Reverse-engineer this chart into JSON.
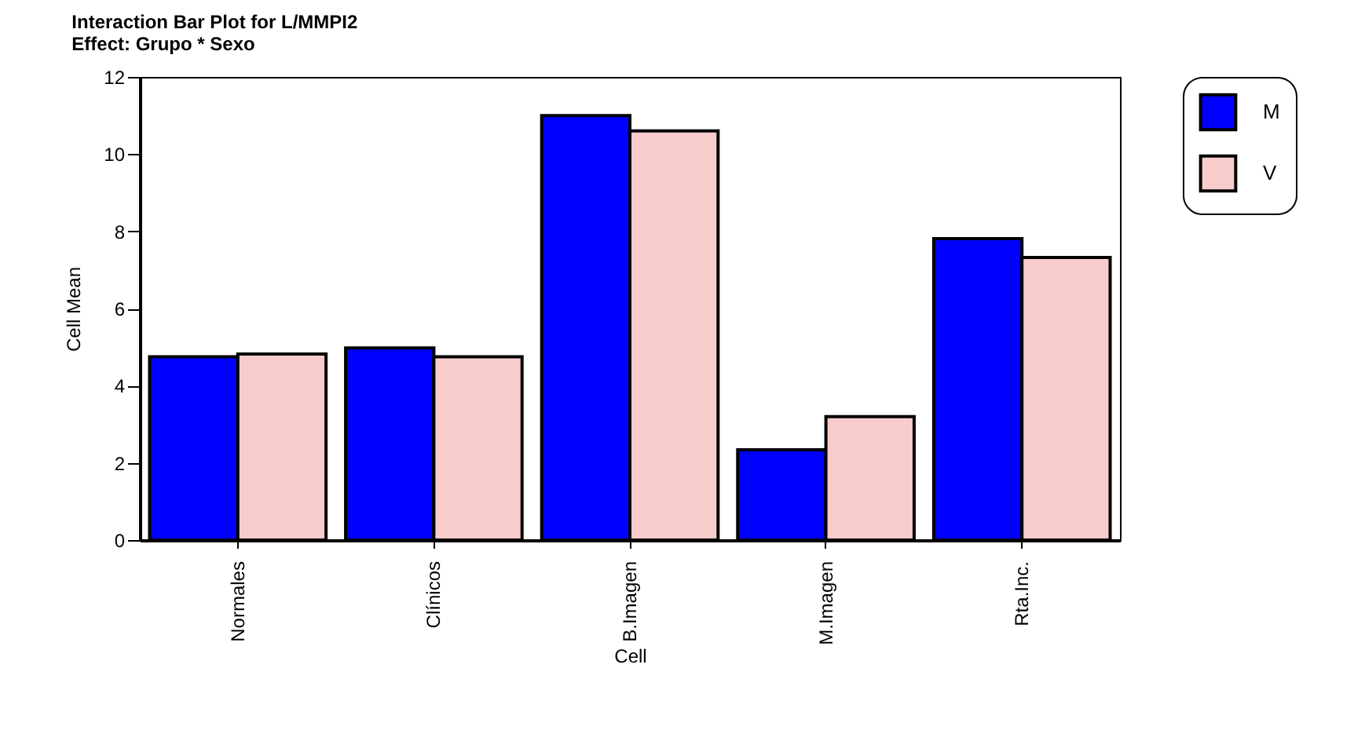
{
  "chart_data": {
    "type": "bar",
    "title": "Interaction Bar Plot for L/MMPI2",
    "subtitle": "Effect: Grupo * Sexo",
    "xlabel": "Cell",
    "ylabel": "Cell Mean",
    "categories": [
      "Normales",
      "Clínicos",
      "B.Imagen",
      "M.Imagen",
      "Rta.Inc."
    ],
    "series": [
      {
        "name": "M",
        "color": "#0000ff",
        "values": [
          4.75,
          4.98,
          11.0,
          2.34,
          7.81
        ]
      },
      {
        "name": "V",
        "color": "#f9cccc",
        "values": [
          4.82,
          4.75,
          10.6,
          3.2,
          7.32
        ]
      }
    ],
    "ylim": [
      0,
      12
    ],
    "yticks": [
      0,
      2,
      4,
      6,
      8,
      10,
      12
    ],
    "grid": false,
    "legend": "right"
  }
}
